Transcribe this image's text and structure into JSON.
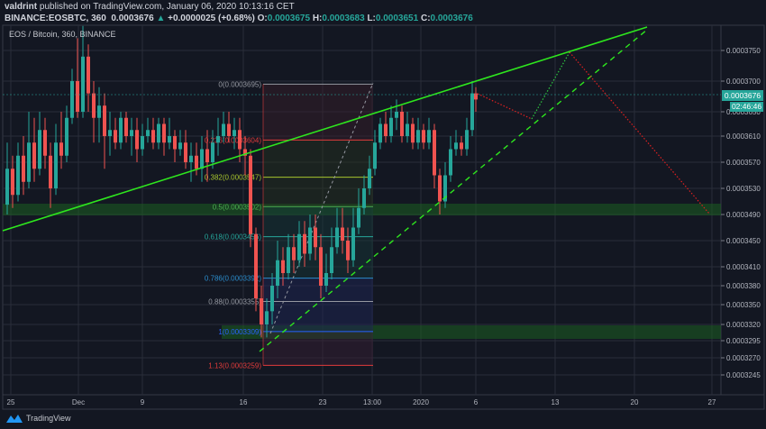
{
  "header": {
    "author": "valdrint",
    "published_text": "published on TradingView.com, January 06, 2020 10:13:16 CET",
    "symbol": "BINANCE:EOSBTC, 360",
    "last_price": "0.0003676",
    "change_arrow": "▲",
    "change": "+0.0000025 (+0.68%)",
    "o_label": "O:",
    "o_value": "0.0003675",
    "h_label": "H:",
    "h_value": "0.0003683",
    "l_label": "L:",
    "l_value": "0.0003651",
    "c_label": "C:",
    "c_value": "0.0003676"
  },
  "legend": "EOS / Bitcoin, 360, BINANCE",
  "price_tag": "0.0003676",
  "countdown": "02:46:46",
  "footer": {
    "brand": "TradingView"
  },
  "colors": {
    "background": "#131722",
    "grid": "#2a2e39",
    "up": "#26a69a",
    "down": "#ef5350",
    "trendline": "#2ee61e",
    "support_zone": "#1b5e20",
    "projection_red": "#e02020",
    "projection_green": "#2ecc40"
  },
  "chart_data": {
    "type": "candlestick",
    "title": "EOS / Bitcoin, 360, BINANCE",
    "xlabel": "",
    "ylabel": "",
    "x_ticks": [
      "25",
      "Dec",
      "9",
      "16",
      "23",
      "13:00",
      "2020",
      "6",
      "13",
      "20",
      "27"
    ],
    "y_ticks": [
      "0.0003750",
      "0.0003700",
      "0.0003650",
      "0.0003610",
      "0.0003570",
      "0.0003530",
      "0.0003490",
      "0.0003450",
      "0.0003410",
      "0.0003380",
      "0.0003350",
      "0.0003320",
      "0.0003295",
      "0.0003270",
      "0.0003245"
    ],
    "ylim": [
      0.0003232,
      0.000379
    ],
    "grid": true,
    "last_price": 0.0003676,
    "fib_retracement": [
      {
        "level": "0",
        "price": "0.0003695",
        "color": "#9598a1"
      },
      {
        "level": "0.236",
        "price": "0.0003604",
        "color": "#e03b3b"
      },
      {
        "level": "0.382",
        "price": "0.0003547",
        "color": "#a8c62e"
      },
      {
        "level": "0.5",
        "price": "0.0003502",
        "color": "#4caf50"
      },
      {
        "level": "0.618",
        "price": "0.0003456",
        "color": "#26a69a"
      },
      {
        "level": "0.786",
        "price": "0.0003392",
        "color": "#2b8ccb"
      },
      {
        "level": "0.88",
        "price": "0.0003355",
        "color": "#9598a1"
      },
      {
        "level": "1",
        "price": "0.0003309",
        "color": "#2962ff"
      },
      {
        "level": "1.13",
        "price": "0.0003259",
        "color": "#e03b3b"
      }
    ],
    "support_zones": [
      {
        "from": 0.0003485,
        "to": 0.00035
      },
      {
        "from": 0.0003298,
        "to": 0.0003318
      }
    ],
    "annotations": [
      "Ascending resistance trendline",
      "Dashed ascending support trendline",
      "Projected path: pullback, rally to resistance, drop to 0.0003490 support"
    ]
  }
}
